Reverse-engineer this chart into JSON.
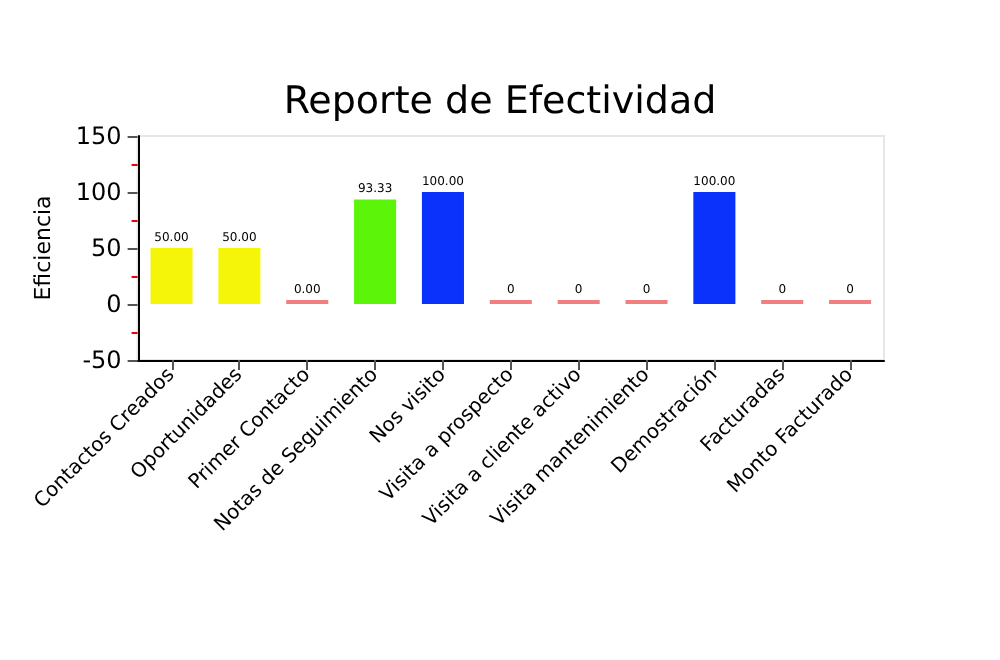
{
  "chart_data": {
    "type": "bar",
    "title": "Reporte de Efectividad",
    "ylabel": "Eficiencia",
    "categories": [
      "Contactos Creados",
      "Oportunidades",
      "Primer Contacto",
      "Notas de Seguimiento",
      "Nos visito",
      "Visita a prospecto",
      "Visita a cliente activo",
      "Visita mantenimiento",
      "Demostración",
      "Facturadas",
      "Monto Facturado"
    ],
    "values": [
      50,
      50,
      0,
      93.33,
      100,
      0,
      0,
      0,
      100,
      0,
      0
    ],
    "value_labels": [
      "50.00",
      "50.00",
      "0.00",
      "93.33",
      "100.00",
      "0",
      "0",
      "0",
      "100.00",
      "0",
      "0"
    ],
    "colors": [
      "#f5f50a",
      "#f5f50a",
      "#f08080",
      "#5cf50a",
      "#0a32fa",
      "#f08080",
      "#f08080",
      "#f08080",
      "#0a32fa",
      "#f08080",
      "#f08080"
    ],
    "ylim": [
      -50,
      150
    ],
    "yticks": [
      -50,
      0,
      50,
      100,
      150
    ],
    "grid": false
  }
}
